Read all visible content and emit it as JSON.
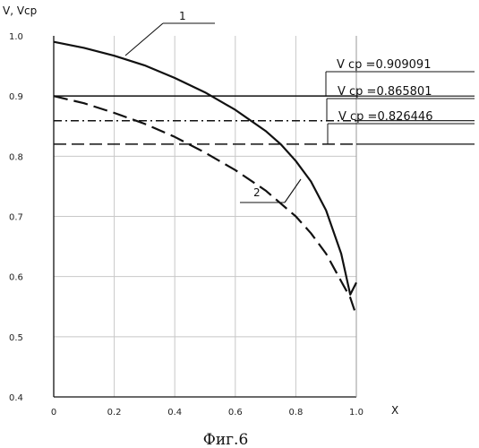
{
  "chart_data": {
    "type": "line",
    "ylabel": "V, Vcp",
    "xlabel": "X",
    "xlim": [
      0,
      1.0
    ],
    "ylim": [
      0.4,
      1.0
    ],
    "xticks": [
      "0",
      "0.2",
      "0.4",
      "0.6",
      "0.8",
      "1.0"
    ],
    "yticks": [
      "0.4",
      "0.5",
      "0.6",
      "0.7",
      "0.8",
      "0.9",
      "1.0"
    ],
    "grid": true,
    "series": [
      {
        "name": "1",
        "style": "solid",
        "x": [
          0,
          0.1,
          0.2,
          0.3,
          0.4,
          0.5,
          0.6,
          0.7,
          0.75,
          0.8,
          0.85,
          0.9,
          0.95,
          0.98,
          1.0
        ],
        "y": [
          0.99,
          0.98,
          0.967,
          0.951,
          0.93,
          0.906,
          0.877,
          0.842,
          0.82,
          0.792,
          0.758,
          0.71,
          0.638,
          0.57,
          0.59
        ]
      },
      {
        "name": "2",
        "style": "dashed",
        "x": [
          0,
          0.1,
          0.2,
          0.3,
          0.4,
          0.5,
          0.6,
          0.7,
          0.8,
          0.85,
          0.9,
          0.95,
          0.98,
          1.0
        ],
        "y": [
          0.9,
          0.888,
          0.872,
          0.854,
          0.832,
          0.806,
          0.777,
          0.743,
          0.7,
          0.672,
          0.638,
          0.592,
          0.565,
          0.535
        ]
      }
    ],
    "reference_lines": [
      {
        "label": "V cp =0.909091",
        "y": 0.9,
        "style": "solid"
      },
      {
        "label": "V cp =0.865801",
        "y": 0.859,
        "style": "dash-dot"
      },
      {
        "label": "V cp =0.826446",
        "y": 0.82,
        "style": "dashed"
      }
    ],
    "curve_labels": [
      "1",
      "2"
    ]
  },
  "caption": "Фиг.6"
}
